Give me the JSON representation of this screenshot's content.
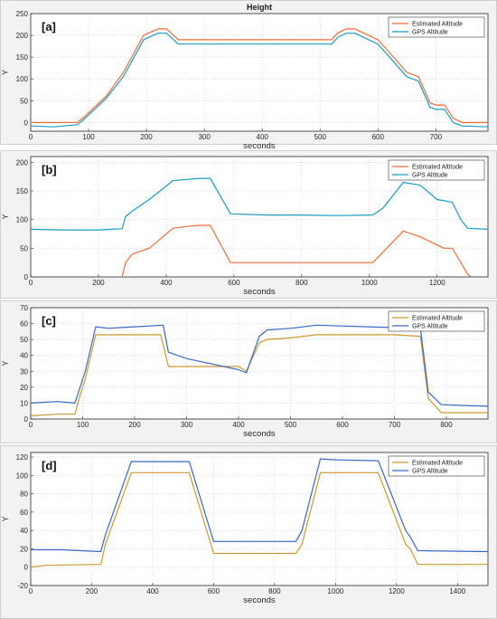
{
  "chart_data": [
    {
      "type": "line",
      "panel_label": "[a]",
      "title": "Height",
      "xlabel": "seconds",
      "ylabel": "Y",
      "xlim": [
        0,
        790
      ],
      "ylim": [
        -20,
        250
      ],
      "xticks": [
        0,
        100,
        200,
        300,
        400,
        500,
        600,
        700
      ],
      "yticks": [
        -50,
        0,
        50,
        100,
        150,
        200,
        250
      ],
      "ytick_labels": [
        "0",
        "50",
        "100",
        "150",
        "200",
        "250"
      ],
      "grid": true,
      "legend": "top-right",
      "series": [
        {
          "name": "Estimated Altitude",
          "color": "#f26b3a",
          "x": [
            0,
            80,
            90,
            130,
            160,
            195,
            220,
            235,
            255,
            300,
            400,
            520,
            530,
            545,
            560,
            600,
            650,
            670,
            690,
            700,
            715,
            730,
            745,
            790
          ],
          "y": [
            0,
            0,
            10,
            60,
            115,
            200,
            215,
            215,
            190,
            190,
            190,
            190,
            205,
            215,
            215,
            190,
            115,
            105,
            45,
            40,
            40,
            10,
            0,
            0
          ]
        },
        {
          "name": "GPS Altitude",
          "color": "#1a9bbf",
          "x": [
            0,
            40,
            80,
            90,
            130,
            160,
            195,
            220,
            235,
            255,
            300,
            400,
            520,
            530,
            545,
            560,
            600,
            650,
            670,
            690,
            700,
            715,
            730,
            745,
            790
          ],
          "y": [
            -8,
            -10,
            -5,
            5,
            55,
            105,
            190,
            205,
            205,
            180,
            180,
            180,
            180,
            195,
            205,
            205,
            180,
            105,
            95,
            35,
            30,
            30,
            0,
            -8,
            -10
          ]
        }
      ]
    },
    {
      "type": "line",
      "panel_label": "[b]",
      "title": "",
      "xlabel": "seconds",
      "ylabel": "Y",
      "xlim": [
        0,
        1350
      ],
      "ylim": [
        0,
        210
      ],
      "xticks": [
        0,
        200,
        400,
        600,
        800,
        1000,
        1200
      ],
      "yticks": [
        0,
        50,
        100,
        150,
        200
      ],
      "grid": true,
      "legend": "top-right",
      "series": [
        {
          "name": "Estimated Altitude",
          "color": "#f26b3a",
          "x": [
            270,
            280,
            300,
            350,
            420,
            460,
            500,
            530,
            590,
            700,
            900,
            1010,
            1100,
            1150,
            1220,
            1245,
            1270,
            1290,
            1300
          ],
          "y": [
            0,
            25,
            40,
            50,
            85,
            88,
            90,
            90,
            25,
            25,
            25,
            25,
            80,
            70,
            50,
            50,
            25,
            5,
            0
          ]
        },
        {
          "name": "GPS Altitude",
          "color": "#1a9bbf",
          "x": [
            0,
            100,
            200,
            270,
            280,
            300,
            350,
            420,
            460,
            500,
            530,
            590,
            700,
            800,
            900,
            1010,
            1040,
            1100,
            1150,
            1200,
            1230,
            1245,
            1270,
            1290,
            1350
          ],
          "y": [
            83,
            82,
            82,
            84,
            105,
            115,
            135,
            168,
            170,
            172,
            172,
            110,
            108,
            108,
            107,
            108,
            120,
            165,
            160,
            135,
            132,
            130,
            100,
            85,
            83
          ]
        }
      ]
    },
    {
      "type": "line",
      "panel_label": "[c]",
      "title": "",
      "xlabel": "seconds",
      "ylabel": "Y",
      "xlim": [
        0,
        880
      ],
      "ylim": [
        0,
        70
      ],
      "xticks": [
        0,
        100,
        200,
        300,
        400,
        500,
        600,
        700,
        800
      ],
      "yticks": [
        0,
        10,
        20,
        30,
        40,
        50,
        60,
        70
      ],
      "grid": true,
      "legend": "top-right",
      "series": [
        {
          "name": "Estimated Altitude",
          "color": "#c99a2e",
          "x": [
            0,
            50,
            85,
            95,
            105,
            125,
            150,
            200,
            250,
            265,
            300,
            400,
            415,
            440,
            455,
            500,
            550,
            700,
            750,
            765,
            790,
            880
          ],
          "y": [
            2,
            3,
            3,
            15,
            25,
            53,
            53,
            53,
            53,
            33,
            33,
            33,
            30,
            48,
            50,
            51,
            53,
            53,
            52,
            13,
            4,
            4
          ]
        },
        {
          "name": "GPS Altitude",
          "color": "#3a66c8",
          "x": [
            0,
            50,
            85,
            95,
            105,
            125,
            150,
            200,
            255,
            265,
            300,
            400,
            415,
            440,
            455,
            500,
            550,
            650,
            750,
            765,
            790,
            880
          ],
          "y": [
            10,
            11,
            10,
            20,
            30,
            58,
            57,
            58,
            59,
            42,
            38,
            31,
            29,
            52,
            56,
            57,
            59,
            58,
            57,
            17,
            9,
            8
          ]
        }
      ]
    },
    {
      "type": "line",
      "panel_label": "[d]",
      "title": "",
      "xlabel": "seconds",
      "ylabel": "Y",
      "xlim": [
        0,
        1500
      ],
      "ylim": [
        -20,
        125
      ],
      "xticks": [
        0,
        200,
        400,
        600,
        800,
        1000,
        1200,
        1400
      ],
      "yticks": [
        -20,
        0,
        20,
        40,
        60,
        80,
        100,
        120
      ],
      "grid": true,
      "legend": "top-right",
      "series": [
        {
          "name": "Estimated Altitude",
          "color": "#c99a2e",
          "x": [
            0,
            50,
            230,
            245,
            330,
            400,
            520,
            600,
            700,
            870,
            890,
            950,
            1000,
            1140,
            1230,
            1245,
            1270,
            1500
          ],
          "y": [
            0,
            2,
            3,
            25,
            103,
            103,
            103,
            15,
            15,
            15,
            25,
            103,
            103,
            103,
            25,
            20,
            3,
            3
          ]
        },
        {
          "name": "GPS Altitude",
          "color": "#3a66c8",
          "x": [
            0,
            100,
            230,
            245,
            330,
            400,
            520,
            600,
            700,
            870,
            890,
            950,
            1000,
            1140,
            1230,
            1245,
            1270,
            1500
          ],
          "y": [
            19,
            19,
            17,
            35,
            115,
            115,
            115,
            28,
            28,
            28,
            40,
            118,
            117,
            116,
            40,
            33,
            18,
            17
          ]
        }
      ]
    }
  ]
}
